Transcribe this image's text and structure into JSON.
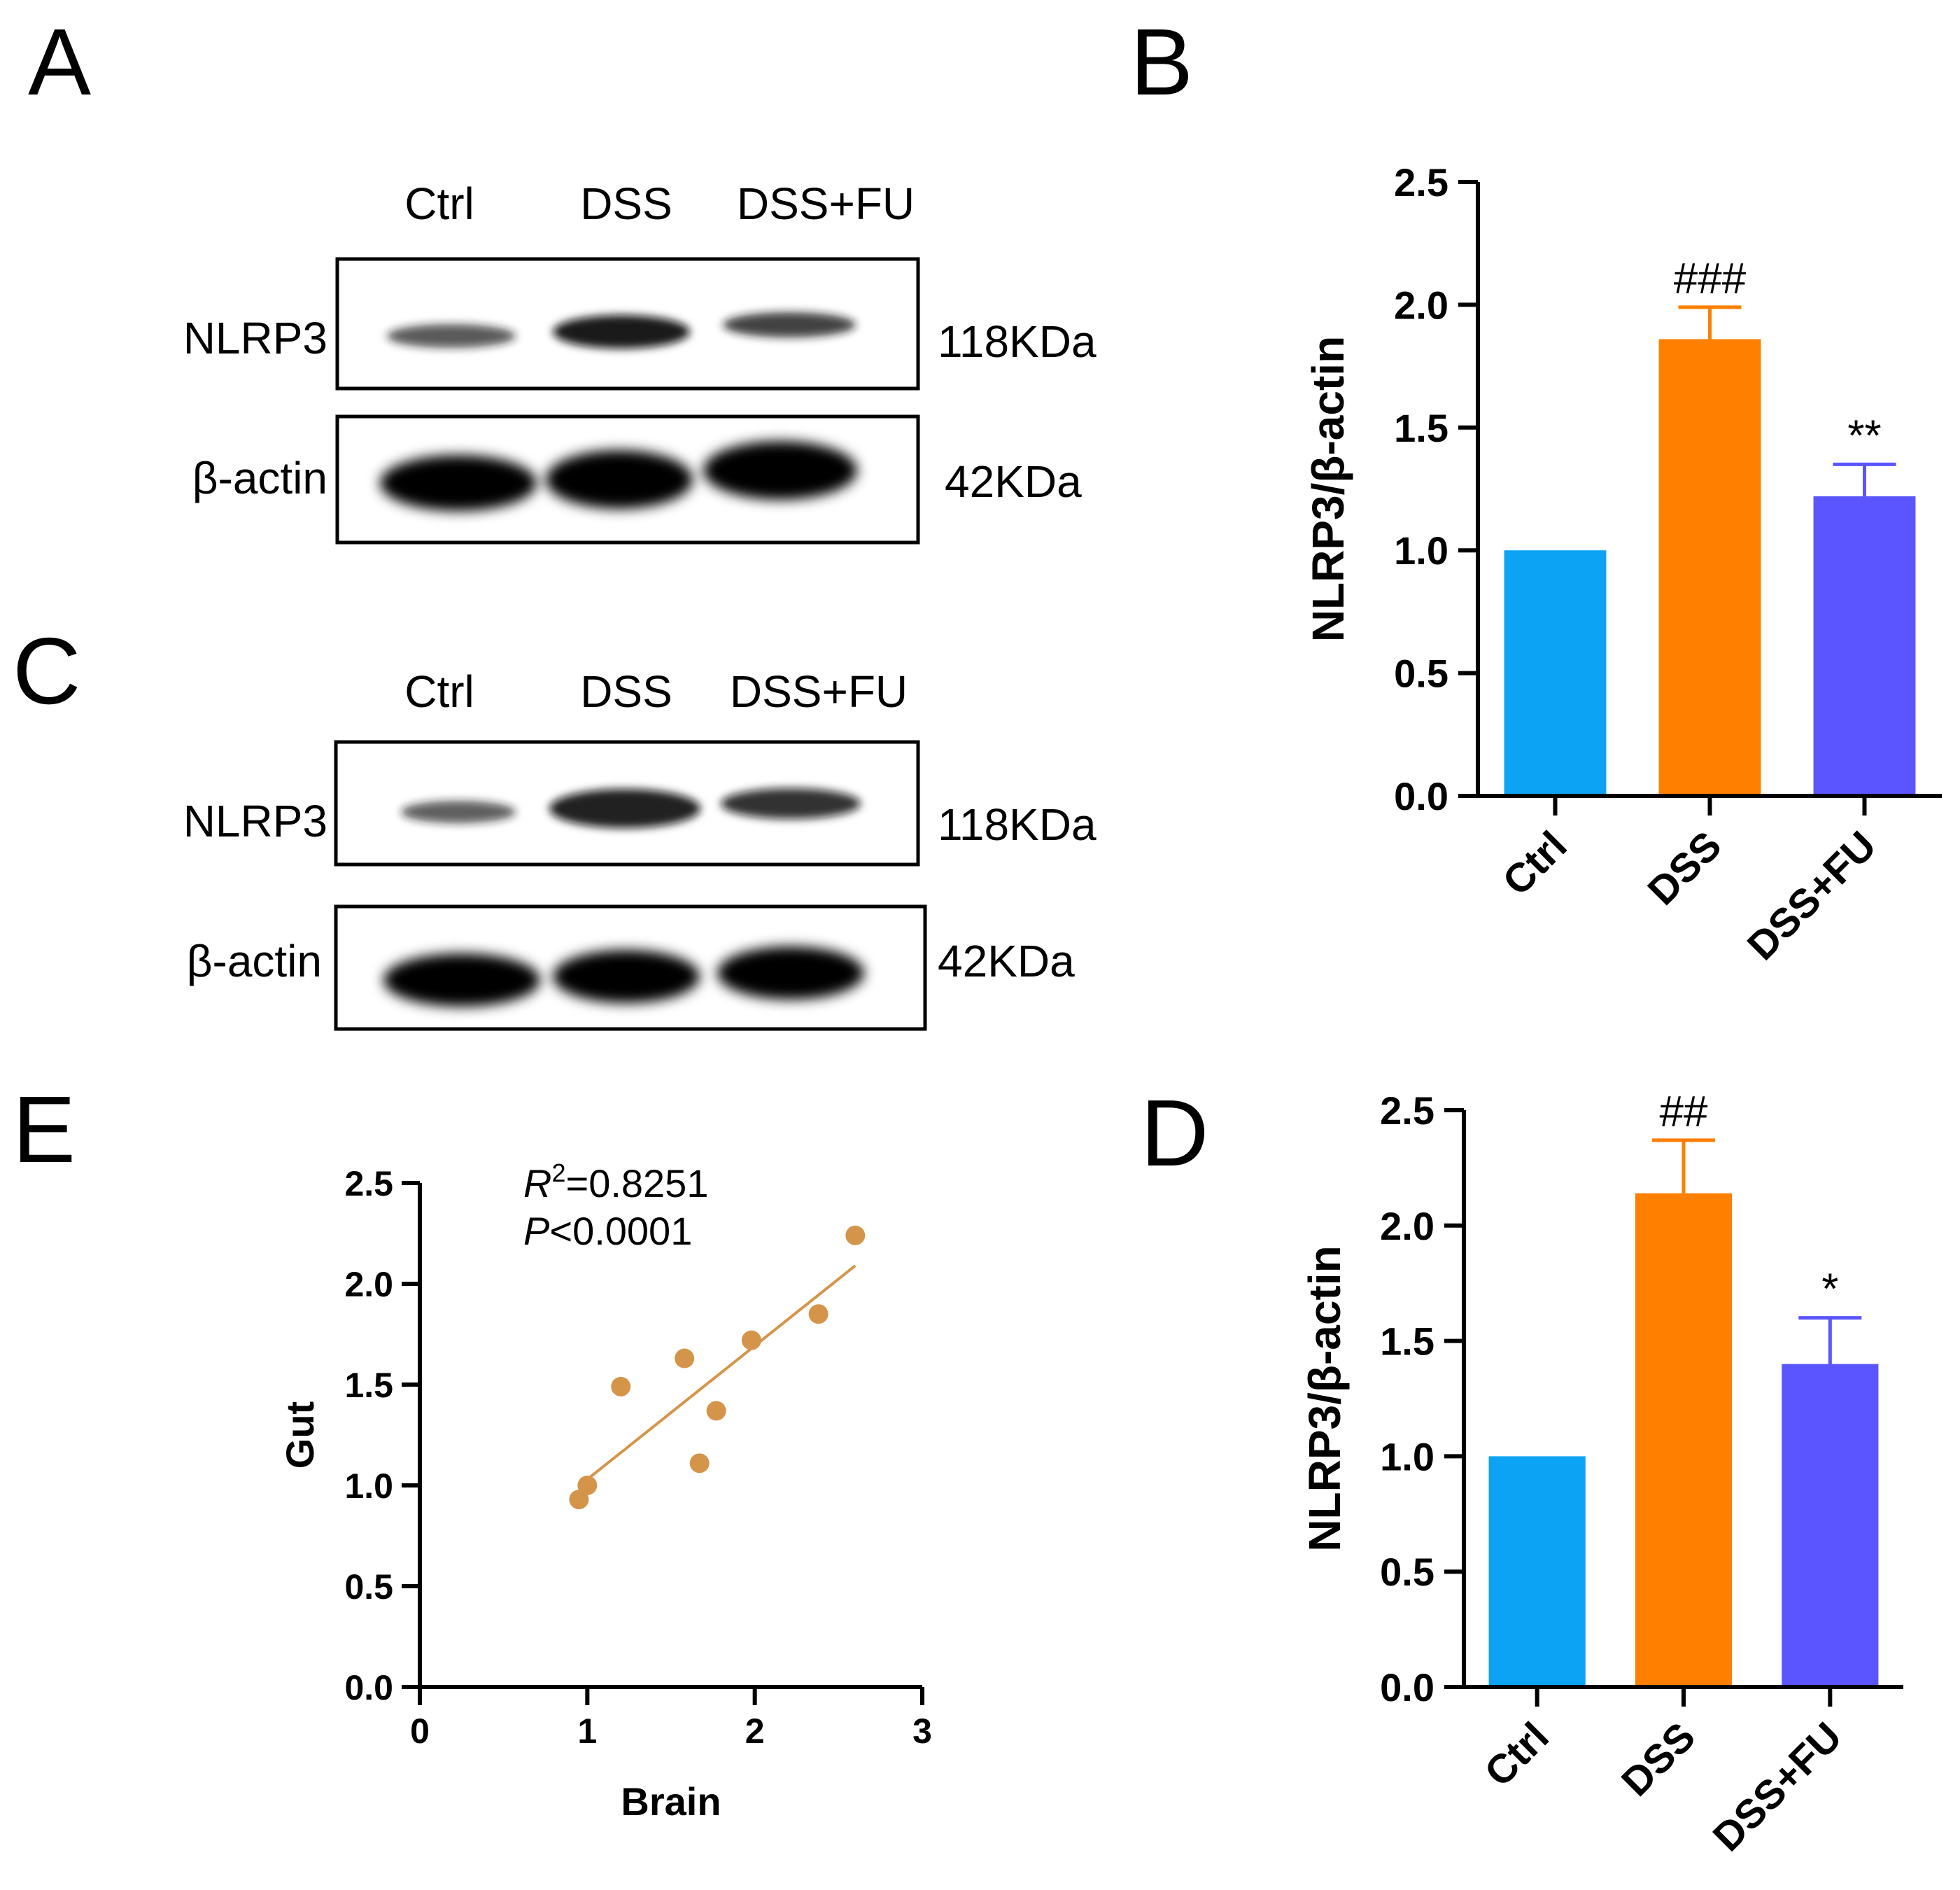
{
  "panels": {
    "A": "A",
    "B": "B",
    "C": "C",
    "D": "D",
    "E": "E"
  },
  "blots": [
    {
      "panel": "A",
      "lanes": [
        "Ctrl",
        "DSS",
        "DSS+FU"
      ],
      "rows": [
        {
          "protein": "NLRP3",
          "size": "118KDa",
          "intensity": [
            0.55,
            1.0,
            0.65
          ]
        },
        {
          "protein": "β-actin",
          "size": "42KDa",
          "intensity": [
            1.0,
            1.0,
            1.0
          ]
        }
      ]
    },
    {
      "panel": "C",
      "lanes": [
        "Ctrl",
        "DSS",
        "DSS+FU"
      ],
      "rows": [
        {
          "protein": "NLRP3",
          "size": "118KDa",
          "intensity": [
            0.5,
            1.0,
            0.8
          ]
        },
        {
          "protein": "β-actin",
          "size": "42KDa",
          "intensity": [
            1.0,
            1.0,
            1.0
          ]
        }
      ]
    }
  ],
  "chart_data": [
    {
      "panel": "B",
      "type": "bar",
      "categories": [
        "Ctrl",
        "DSS",
        "DSS+FU"
      ],
      "values": [
        1.0,
        1.86,
        1.22
      ],
      "errors": [
        0,
        0.13,
        0.13
      ],
      "significance": [
        "",
        "###",
        "**"
      ],
      "colors": [
        "#0ca3f5",
        "#ff7f00",
        "#5a55ff"
      ],
      "ylabel": "NLRP3/β-actin",
      "ylim": [
        0,
        2.5
      ],
      "yticks": [
        "0.0",
        "0.5",
        "1.0",
        "1.5",
        "2.0",
        "2.5"
      ]
    },
    {
      "panel": "D",
      "type": "bar",
      "categories": [
        "Ctrl",
        "DSS",
        "DSS+FU"
      ],
      "values": [
        1.0,
        2.14,
        1.4
      ],
      "errors": [
        0,
        0.23,
        0.2
      ],
      "significance": [
        "",
        "##",
        "*"
      ],
      "colors": [
        "#0ca3f5",
        "#ff7f00",
        "#5a55ff"
      ],
      "ylabel": "NLRP3/β-actin",
      "ylim": [
        0,
        2.5
      ],
      "yticks": [
        "0.0",
        "0.5",
        "1.0",
        "1.5",
        "2.0",
        "2.5"
      ]
    },
    {
      "panel": "E",
      "type": "scatter",
      "x": [
        0.95,
        1.0,
        1.2,
        1.58,
        1.67,
        1.77,
        1.98,
        2.38,
        2.6
      ],
      "y": [
        0.93,
        1.0,
        1.49,
        1.63,
        1.11,
        1.37,
        1.72,
        1.85,
        2.24
      ],
      "fit": {
        "x": [
          1.0,
          2.6
        ],
        "y": [
          1.03,
          2.09
        ]
      },
      "color": "#d4954a",
      "xlabel": "Brain",
      "ylabel": "Gut",
      "xlim": [
        0,
        3
      ],
      "ylim": [
        0,
        2.5
      ],
      "xticks": [
        "0",
        "1",
        "2",
        "3"
      ],
      "yticks": [
        "0.0",
        "0.5",
        "1.0",
        "1.5",
        "2.0",
        "2.5"
      ],
      "r2_label": "R",
      "r2_sup": "2",
      "r2_value": "=0.8251",
      "p_label": "P",
      "p_value": "<0.0001"
    }
  ]
}
